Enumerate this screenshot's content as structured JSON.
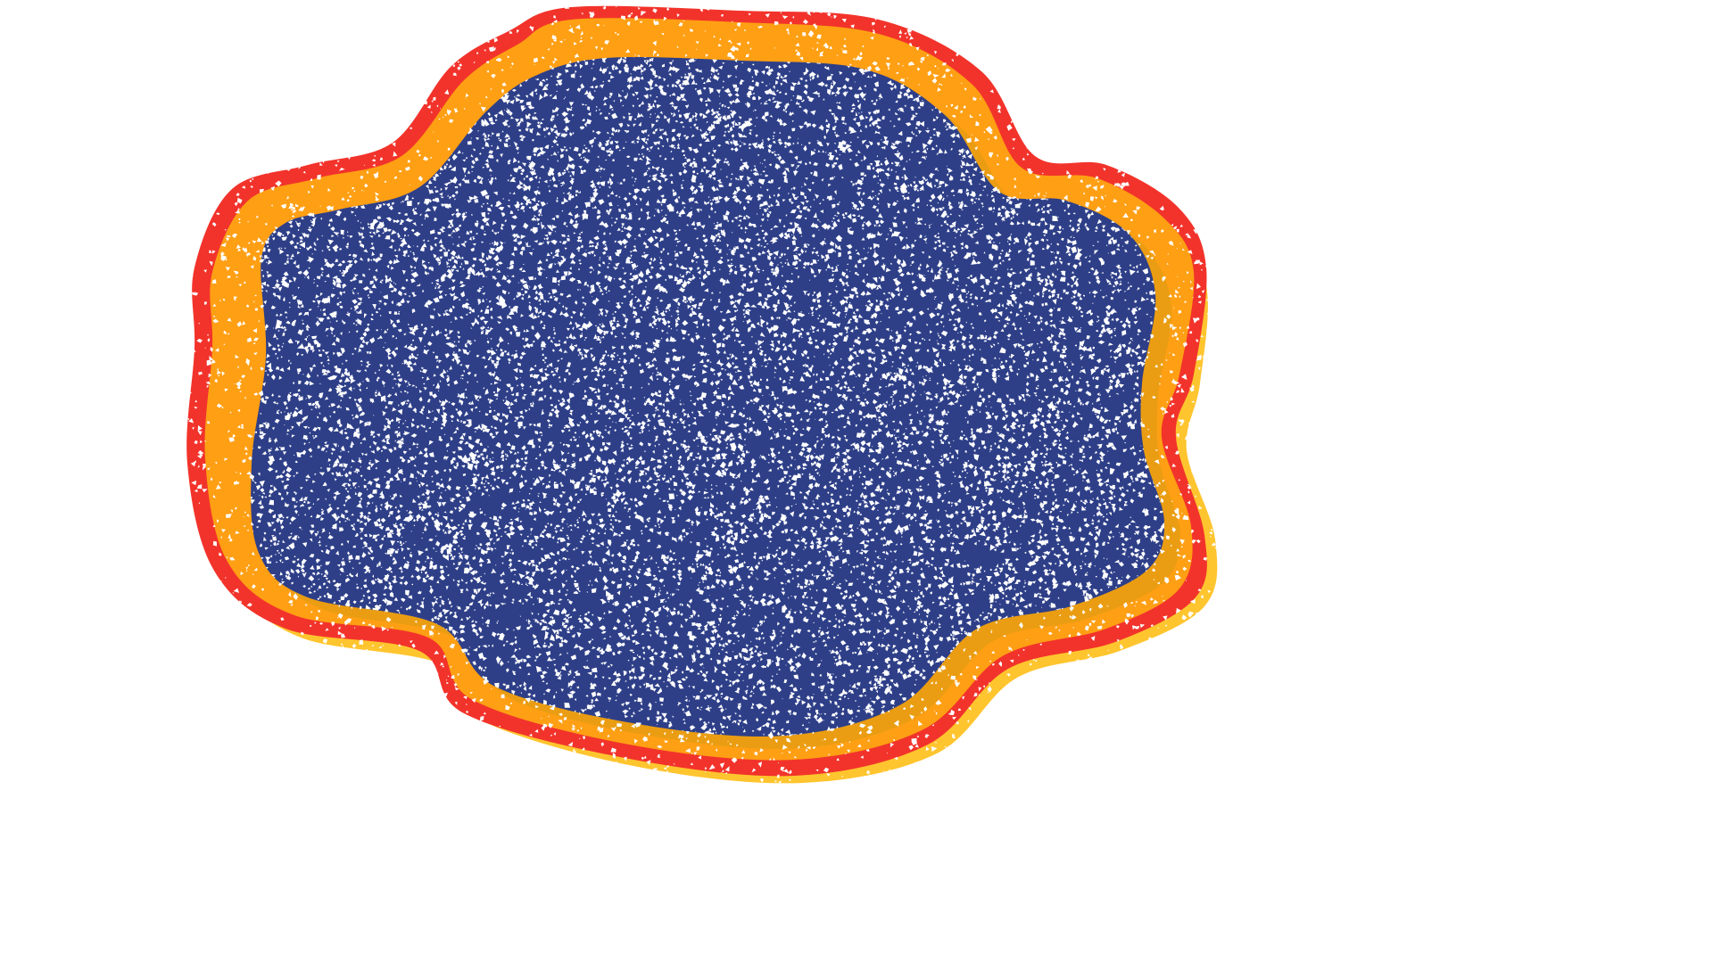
{
  "canvas": {
    "background": "#ffffff"
  },
  "badge": {
    "shape": "wavy-blob",
    "texture": "white-speckle-grain",
    "layers": [
      {
        "name": "outer-border",
        "color": "#f2332b"
      },
      {
        "name": "middle-border",
        "color": "#ff9f14"
      },
      {
        "name": "offset-shadow",
        "color": "#ffc52e"
      },
      {
        "name": "inner-fill",
        "color": "#2e3f88"
      }
    ],
    "speckle_color": "#ffffff",
    "label": ""
  }
}
